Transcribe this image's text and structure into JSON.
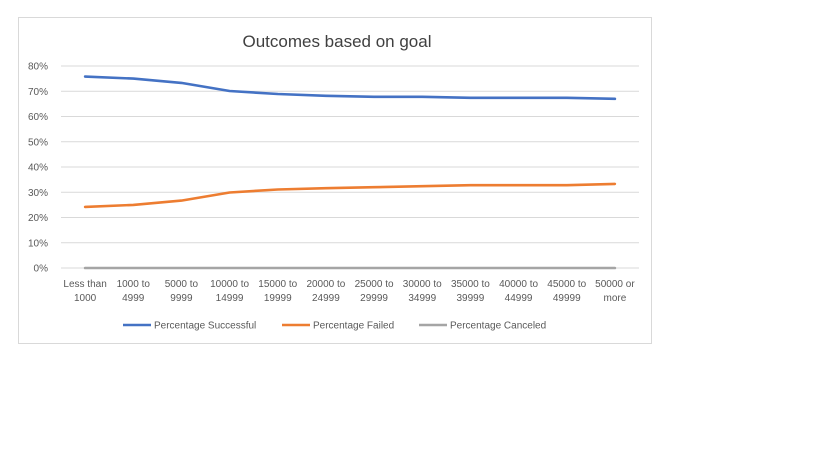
{
  "chart_data": {
    "type": "line",
    "title": "Outcomes based on goal",
    "xlabel": "",
    "ylabel": "",
    "categories": [
      [
        "Less than",
        "1000"
      ],
      [
        "1000 to",
        "4999"
      ],
      [
        "5000 to",
        "9999"
      ],
      [
        "10000 to",
        "14999"
      ],
      [
        "15000 to",
        "19999"
      ],
      [
        "20000 to",
        "24999"
      ],
      [
        "25000 to",
        "29999"
      ],
      [
        "30000 to",
        "34999"
      ],
      [
        "35000 to",
        "39999"
      ],
      [
        "40000 to",
        "44999"
      ],
      [
        "45000 to",
        "49999"
      ],
      [
        "50000 or",
        "more"
      ]
    ],
    "ylim": [
      0,
      80
    ],
    "yticks": [
      {
        "value": 0,
        "label": "0%"
      },
      {
        "value": 10,
        "label": "10%"
      },
      {
        "value": 20,
        "label": "20%"
      },
      {
        "value": 30,
        "label": "30%"
      },
      {
        "value": 40,
        "label": "40%"
      },
      {
        "value": 50,
        "label": "50%"
      },
      {
        "value": 60,
        "label": "60%"
      },
      {
        "value": 70,
        "label": "70%"
      },
      {
        "value": 80,
        "label": "80%"
      }
    ],
    "grid": true,
    "legend_position": "bottom",
    "series": [
      {
        "name": "Percentage Successful",
        "color": "#4472c4",
        "values": [
          75.8,
          75.0,
          73.3,
          70.1,
          68.9,
          68.2,
          67.8,
          67.8,
          67.4,
          67.4,
          67.4,
          67.0
        ]
      },
      {
        "name": "Percentage Failed",
        "color": "#ed7d31",
        "values": [
          24.2,
          25.0,
          26.7,
          29.9,
          31.1,
          31.6,
          32.0,
          32.4,
          32.8,
          32.8,
          32.8,
          33.3
        ]
      },
      {
        "name": "Percentage Canceled",
        "color": "#a5a5a5",
        "values": [
          0,
          0,
          0,
          0,
          0,
          0,
          0,
          0,
          0,
          0,
          0,
          0
        ]
      }
    ]
  }
}
